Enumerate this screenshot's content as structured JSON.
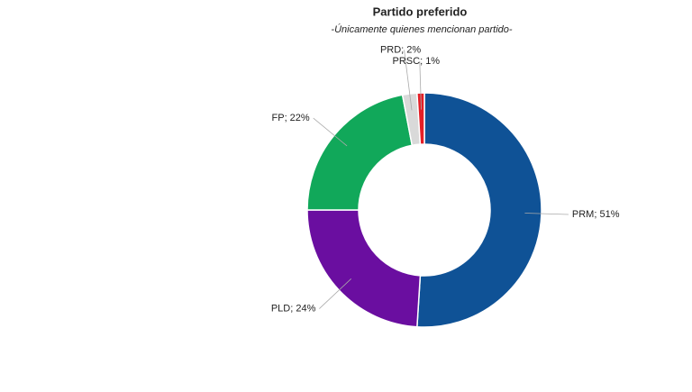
{
  "chart_data": {
    "type": "donut",
    "title": "Partido preferido",
    "subtitle": "-Únicamente quienes mencionan partido-",
    "values": [
      51,
      24,
      22,
      2,
      1
    ],
    "value_labels": [
      "PRM; 51%",
      "PLD; 24%",
      "FP; 22%",
      "PRD; 2%",
      "PRSC; 1%"
    ],
    "colors": [
      "#0f5296",
      "#6a0ea0",
      "#11a85a",
      "#d9d9d9",
      "#e41e26"
    ]
  }
}
